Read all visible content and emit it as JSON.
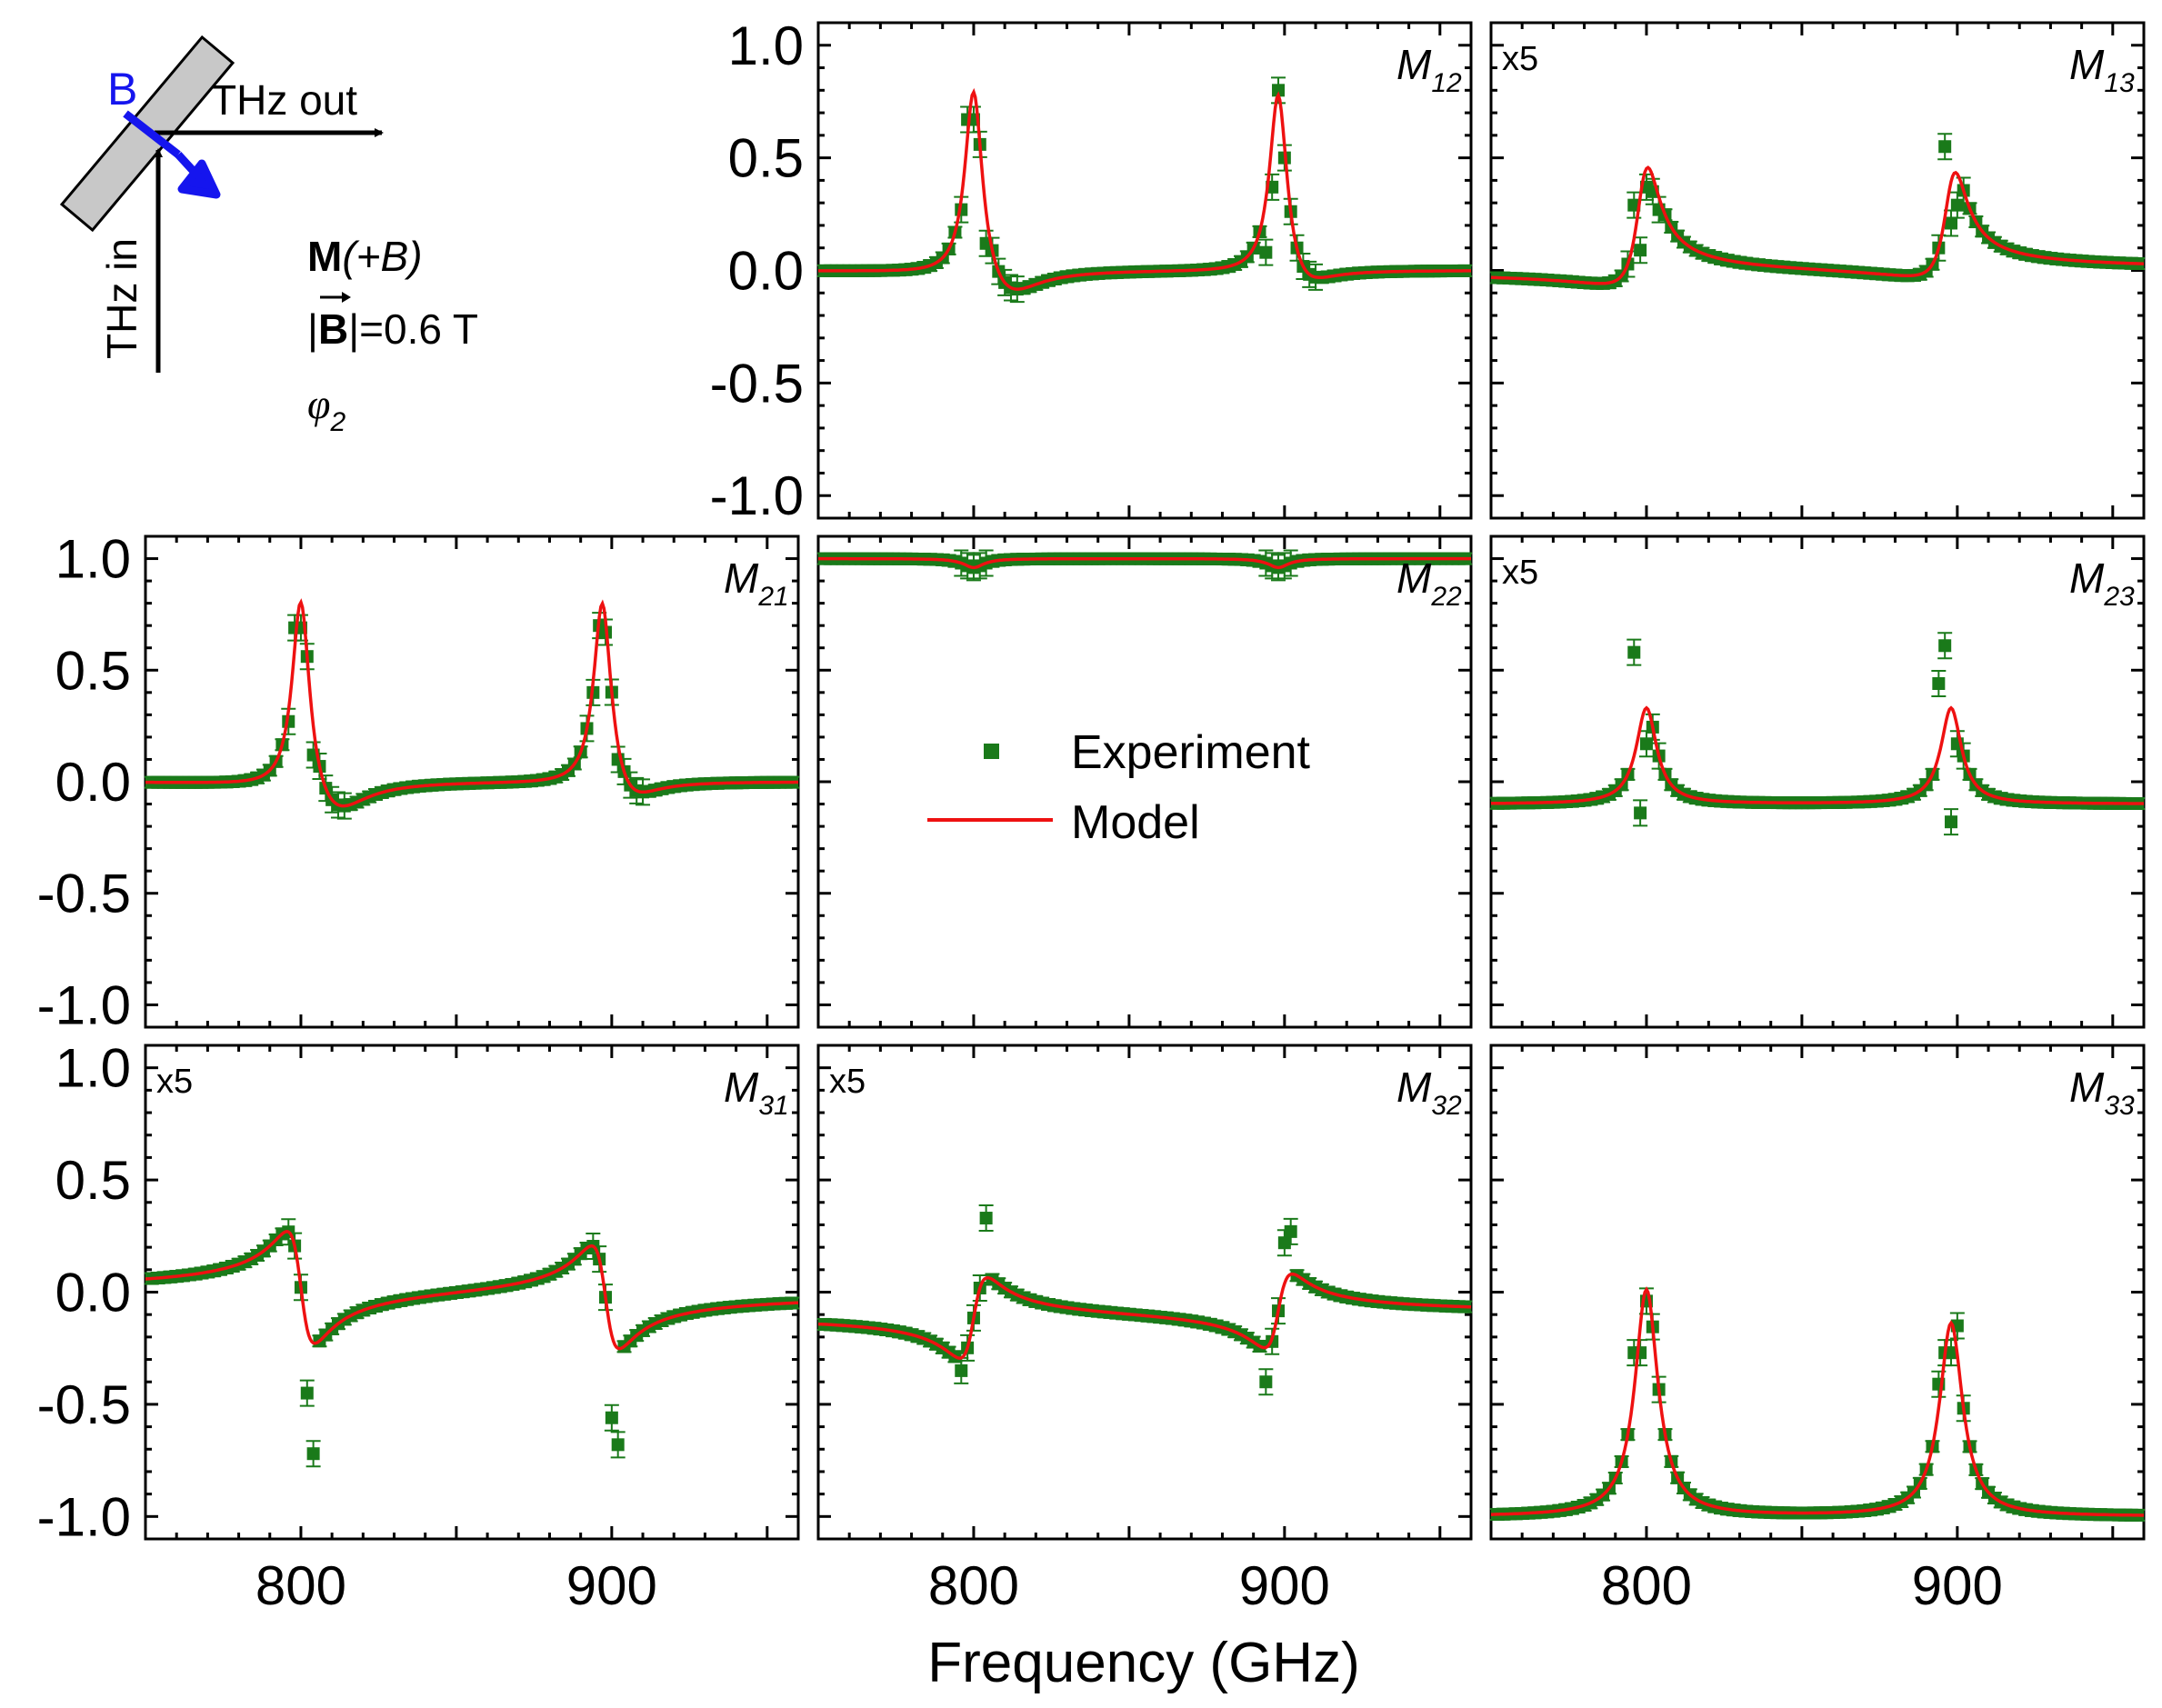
{
  "figure": {
    "xlabel": "Frequency (GHz)",
    "legend": {
      "experiment": "Experiment",
      "model": "Model"
    },
    "colors": {
      "experiment": "#1a7a1a",
      "model": "#ee1111",
      "field": "#1515ee",
      "slab": "#c8c8c8"
    }
  },
  "schematic": {
    "b_label": "B",
    "thz_out": "THz out",
    "thz_in": "THz in",
    "m_bold": "M",
    "m_rest": "(+B)",
    "field_bar": "|",
    "field_B": "B",
    "field_rest": "|=0.6 T",
    "phi_symbol": "φ",
    "phi_sub": "2"
  },
  "chart_data": {
    "type": "scatter+line",
    "xlim": [
      750,
      960
    ],
    "ylim": [
      -1.1,
      1.1
    ],
    "xticks": [
      800,
      900
    ],
    "xtick_labels": [
      "800",
      "900"
    ],
    "yticks": [
      1.0,
      0.5,
      0.0,
      -0.5,
      -1.0
    ],
    "ytick_labels": [
      "1.0",
      "0.5",
      "0.0",
      "-0.5",
      "-1.0"
    ],
    "panels": [
      {
        "id": "M12",
        "label": "M",
        "sub": "12",
        "scale": "",
        "row": 0,
        "col": 1,
        "model": {
          "offset": 0.0,
          "components": [
            {
              "f0": 800,
              "g": 3.5,
              "a": 0.0,
              "b": 0.88
            },
            {
              "f0": 898,
              "g": 3.5,
              "a": 0.0,
              "b": 0.86
            },
            {
              "f0": 810,
              "g": 12,
              "a": 0.0,
              "b": -0.15
            },
            {
              "f0": 905,
              "g": 10,
              "a": 0.0,
              "b": -0.12
            }
          ]
        },
        "experiment_overrides": [
          [
            796,
            0.27
          ],
          [
            798,
            0.67
          ],
          [
            800,
            0.67
          ],
          [
            804,
            0.12
          ],
          [
            894,
            0.08
          ],
          [
            896,
            0.37
          ],
          [
            898,
            0.8
          ],
          [
            900,
            0.5
          ],
          [
            904,
            0.1
          ]
        ]
      },
      {
        "id": "M13",
        "label": "M",
        "sub": "13",
        "scale": "x5",
        "row": 0,
        "col": 2,
        "model": {
          "offset": 0.0,
          "components": [
            {
              "f0": 799,
              "g": 4.5,
              "a": 0.3,
              "b": 0.42
            },
            {
              "f0": 898,
              "g": 4.5,
              "a": 0.26,
              "b": 0.38
            }
          ]
        },
        "experiment_overrides": [
          [
            796,
            0.29
          ],
          [
            798,
            0.09
          ],
          [
            800,
            0.37
          ],
          [
            802,
            0.35
          ],
          [
            804,
            0.27
          ],
          [
            894,
            0.1
          ],
          [
            896,
            0.55
          ],
          [
            898,
            0.21
          ],
          [
            900,
            0.29
          ]
        ]
      },
      {
        "id": "M21",
        "label": "M",
        "sub": "21",
        "scale": "",
        "row": 1,
        "col": 0,
        "model": {
          "offset": 0.0,
          "components": [
            {
              "f0": 800,
              "g": 3.5,
              "a": 0.0,
              "b": 0.91
            },
            {
              "f0": 897,
              "g": 3.5,
              "a": 0.0,
              "b": 0.88
            },
            {
              "f0": 810,
              "g": 12,
              "a": 0.0,
              "b": -0.18
            },
            {
              "f0": 905,
              "g": 10,
              "a": 0.0,
              "b": -0.13
            }
          ]
        },
        "experiment_overrides": [
          [
            796,
            0.27
          ],
          [
            798,
            0.69
          ],
          [
            800,
            0.69
          ],
          [
            804,
            0.12
          ],
          [
            894,
            0.4
          ],
          [
            896,
            0.7
          ],
          [
            898,
            0.67
          ],
          [
            902,
            0.1
          ]
        ]
      },
      {
        "id": "M22",
        "label": "M",
        "sub": "22",
        "scale": "",
        "row": 1,
        "col": 1,
        "model": {
          "offset": 1.0,
          "components": [
            {
              "f0": 800,
              "g": 4,
              "a": 0.0,
              "b": -0.04
            },
            {
              "f0": 898,
              "g": 4,
              "a": 0.0,
              "b": -0.04
            }
          ]
        },
        "experiment_overrides": []
      },
      {
        "id": "M23",
        "label": "M",
        "sub": "23",
        "scale": "x5",
        "row": 1,
        "col": 2,
        "model": {
          "offset": -0.1,
          "components": [
            {
              "f0": 800,
              "g": 4,
              "a": 0.0,
              "b": 0.43
            },
            {
              "f0": 898,
              "g": 4,
              "a": 0.0,
              "b": 0.43
            }
          ]
        },
        "experiment_overrides": [
          [
            796,
            0.58
          ],
          [
            798,
            -0.14
          ],
          [
            800,
            0.17
          ],
          [
            894,
            0.44
          ],
          [
            896,
            0.61
          ],
          [
            898,
            -0.18
          ],
          [
            900,
            0.17
          ]
        ]
      },
      {
        "id": "M31",
        "label": "M",
        "sub": "31",
        "scale": "x5",
        "row": 2,
        "col": 0,
        "model": {
          "offset": 0.0,
          "components": [
            {
              "f0": 800,
              "g": 4.5,
              "a": -0.5,
              "b": 0.0
            },
            {
              "f0": 898,
              "g": 4.5,
              "a": -0.46,
              "b": 0.0
            }
          ]
        },
        "experiment_overrides": [
          [
            802,
            -0.45
          ],
          [
            804,
            -0.72
          ],
          [
            900,
            -0.56
          ],
          [
            902,
            -0.68
          ]
        ]
      },
      {
        "id": "M32",
        "label": "M",
        "sub": "32",
        "scale": "x5",
        "row": 2,
        "col": 1,
        "model": {
          "offset": -0.1,
          "components": [
            {
              "f0": 800,
              "g": 4.5,
              "a": 0.36,
              "b": 0.0
            },
            {
              "f0": 898,
              "g": 4.5,
              "a": 0.33,
              "b": 0.0
            }
          ]
        },
        "experiment_overrides": [
          [
            796,
            -0.35
          ],
          [
            804,
            0.33
          ],
          [
            894,
            -0.4
          ],
          [
            896,
            -0.22
          ],
          [
            900,
            0.22
          ],
          [
            902,
            0.27
          ]
        ]
      },
      {
        "id": "M33",
        "label": "M",
        "sub": "33",
        "scale": "",
        "row": 2,
        "col": 2,
        "model": {
          "offset": -1.0,
          "components": [
            {
              "f0": 800,
              "g": 4.5,
              "a": 0.0,
              "b": 1.01
            },
            {
              "f0": 898,
              "g": 4.5,
              "a": 0.0,
              "b": 0.86
            }
          ]
        },
        "experiment_overrides": [
          [
            796,
            -0.27
          ],
          [
            798,
            -0.27
          ],
          [
            800,
            -0.04
          ],
          [
            894,
            -0.41
          ],
          [
            896,
            -0.27
          ],
          [
            898,
            -0.27
          ],
          [
            900,
            -0.15
          ]
        ]
      }
    ]
  }
}
